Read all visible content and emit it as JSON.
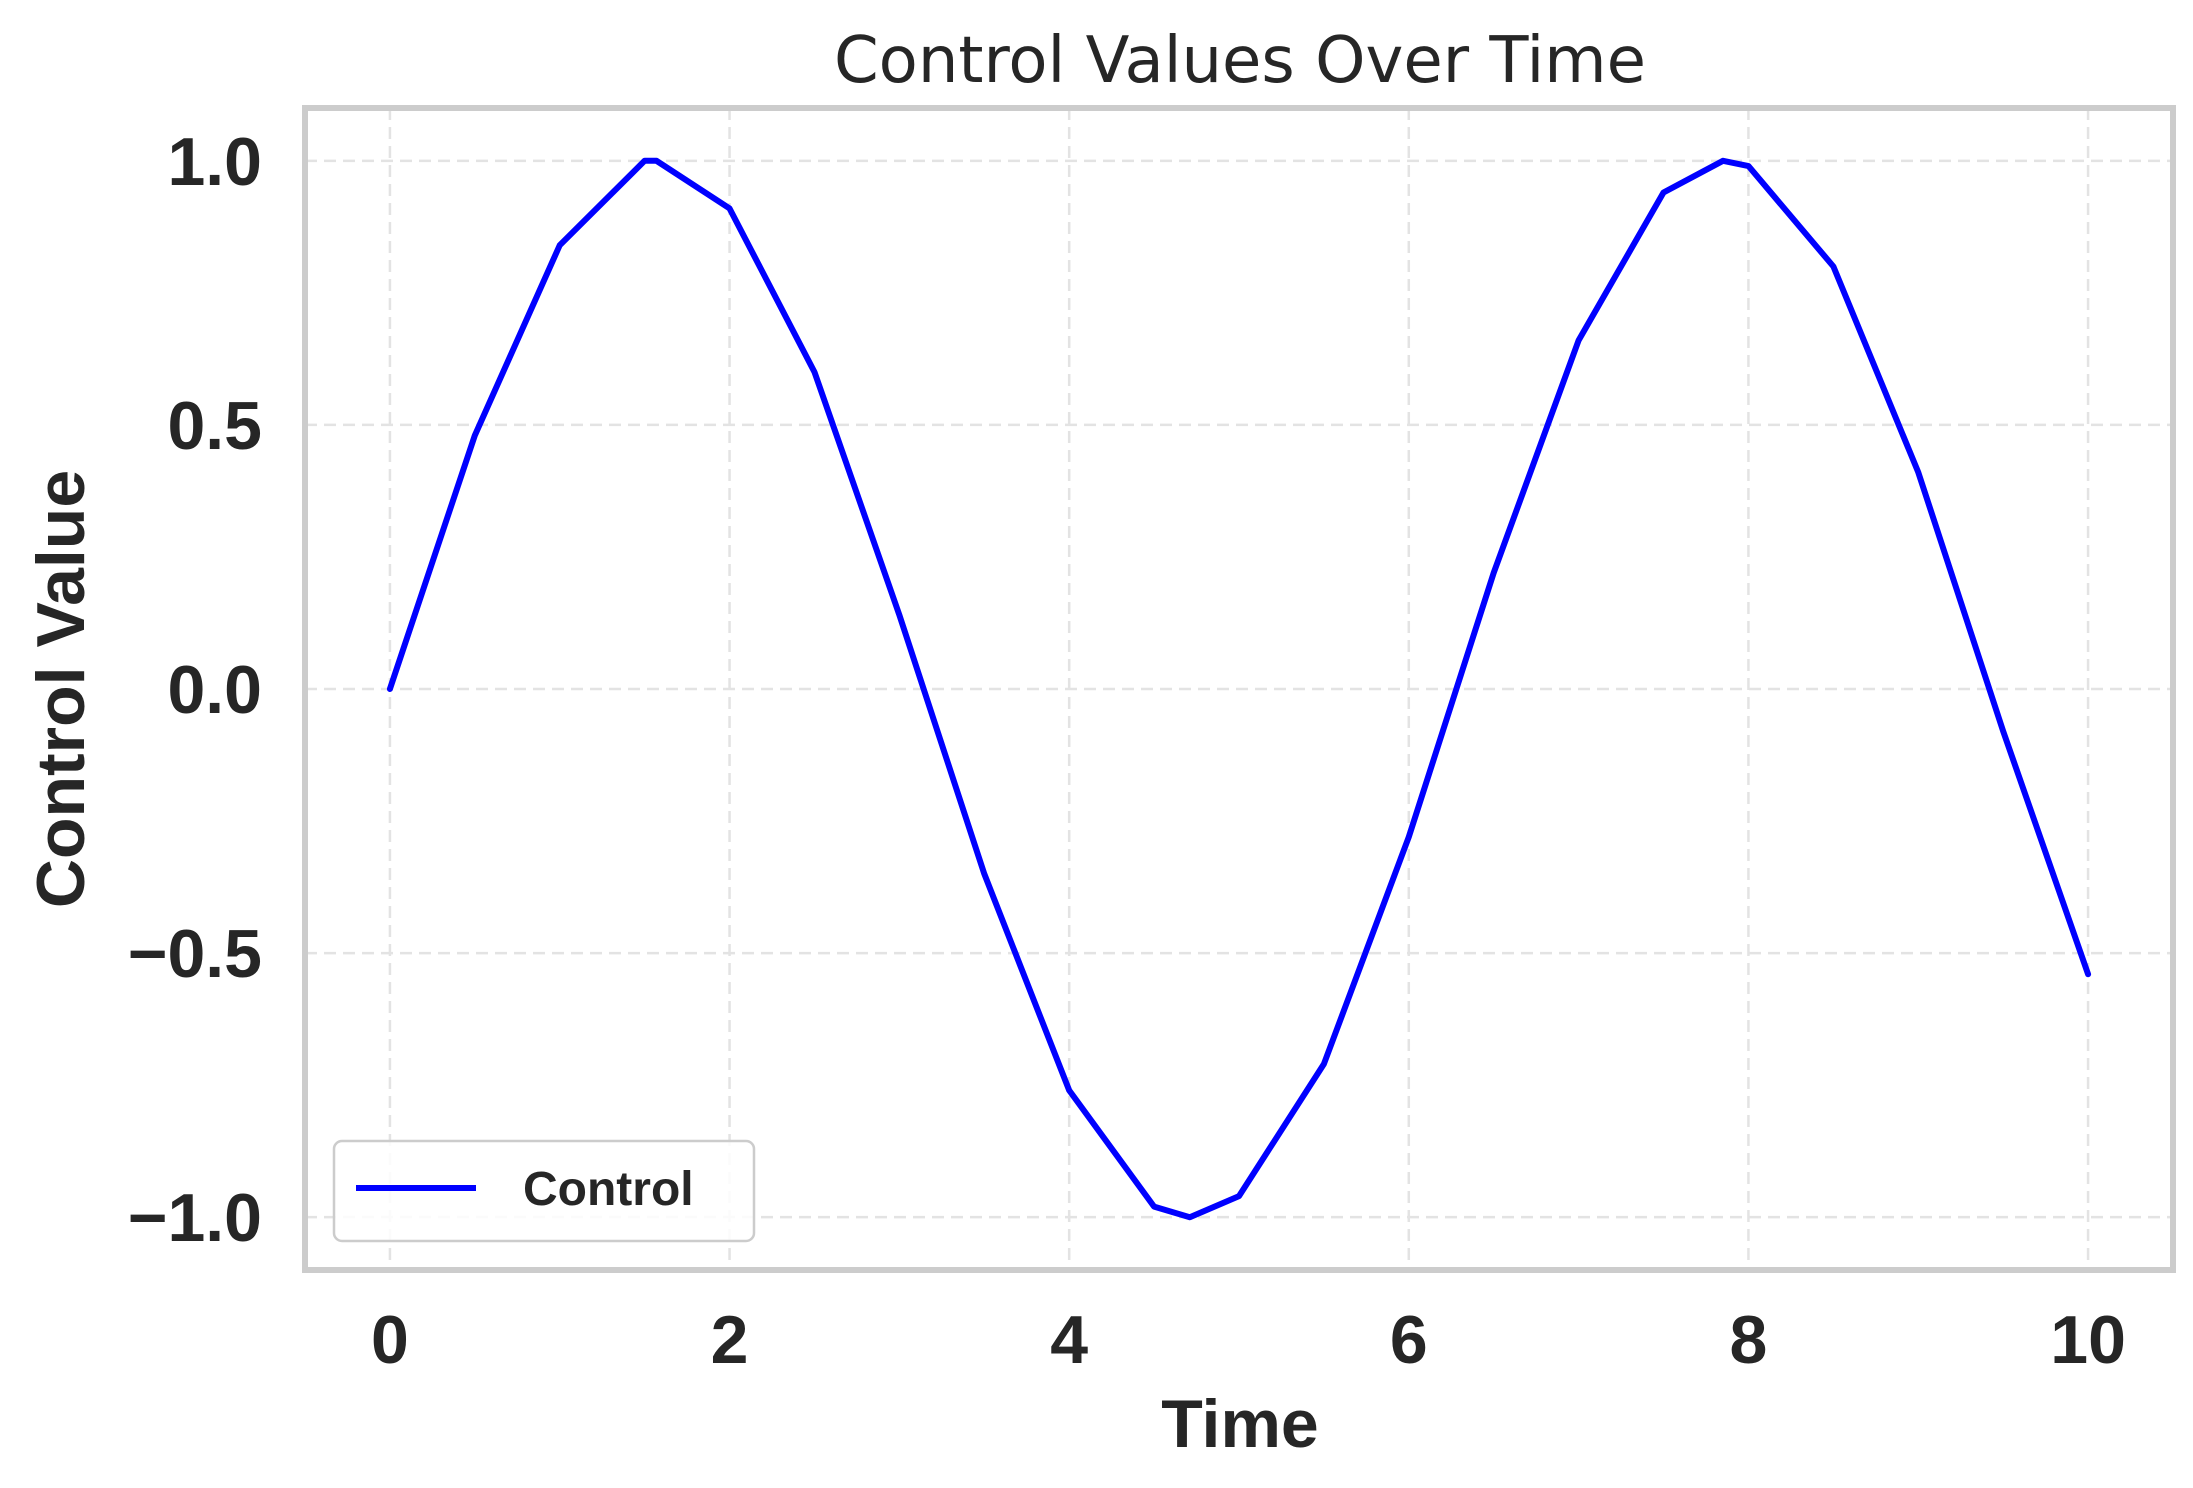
{
  "chart_data": {
    "type": "line",
    "title": "Control Values Over Time",
    "xlabel": "Time",
    "ylabel": "Control Value",
    "xlim": [
      -0.5,
      10.5
    ],
    "ylim": [
      -1.1,
      1.1
    ],
    "xticks": [
      0,
      2,
      4,
      6,
      8,
      10
    ],
    "xtick_labels": [
      "0",
      "2",
      "4",
      "6",
      "8",
      "10"
    ],
    "yticks": [
      -1.0,
      -0.5,
      0.0,
      0.5,
      1.0
    ],
    "ytick_labels": [
      "−1.0",
      "−0.5",
      "0.0",
      "0.5",
      "1.0"
    ],
    "grid": true,
    "legend_position": "lower-left",
    "series": [
      {
        "name": "Control",
        "color": "#0000ff",
        "x": [
          0.0,
          0.5,
          1.0,
          1.5,
          1.57,
          2.0,
          2.5,
          3.0,
          3.5,
          4.0,
          4.5,
          4.71,
          5.0,
          5.5,
          6.0,
          6.5,
          7.0,
          7.5,
          7.85,
          8.0,
          8.5,
          9.0,
          9.5,
          10.0
        ],
        "y": [
          0.0,
          0.48,
          0.84,
          1.0,
          1.0,
          0.91,
          0.6,
          0.14,
          -0.35,
          -0.76,
          -0.98,
          -1.0,
          -0.96,
          -0.71,
          -0.28,
          0.22,
          0.66,
          0.94,
          1.0,
          0.99,
          0.8,
          0.41,
          -0.08,
          -0.54
        ]
      }
    ]
  }
}
